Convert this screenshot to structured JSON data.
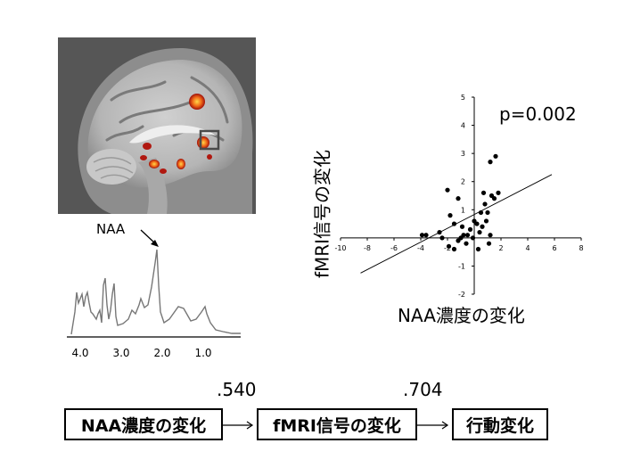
{
  "spectrum": {
    "peak_label": "NAA",
    "ticks": [
      "4.0",
      "3.0",
      "2.0",
      "1.0"
    ]
  },
  "chart_data": {
    "type": "scatter",
    "title": "",
    "xlabel": "NAA濃度の変化",
    "ylabel": "fMRI信号の変化",
    "annotation": "p=0.002",
    "xlim": [
      -10,
      8
    ],
    "ylim": [
      -2,
      5
    ],
    "xticks": [
      -10,
      -8,
      -6,
      -4,
      -2,
      0,
      2,
      4,
      6,
      8
    ],
    "yticks": [
      -2,
      -1,
      1,
      2,
      3,
      4,
      5
    ],
    "grid": false,
    "points": [
      [
        -3.9,
        0.1
      ],
      [
        -3.6,
        0.1
      ],
      [
        -2.4,
        0.0
      ],
      [
        -1.9,
        -0.3
      ],
      [
        -1.5,
        -0.4
      ],
      [
        -1.2,
        -0.1
      ],
      [
        -1.0,
        0.0
      ],
      [
        -0.8,
        0.1
      ],
      [
        -0.5,
        0.1
      ],
      [
        -0.3,
        0.3
      ],
      [
        -0.1,
        0.0
      ],
      [
        0.2,
        0.5
      ],
      [
        0.4,
        0.2
      ],
      [
        0.6,
        0.4
      ],
      [
        0.9,
        0.6
      ],
      [
        1.1,
        -0.2
      ],
      [
        1.2,
        0.1
      ],
      [
        0.5,
        0.9
      ],
      [
        0.8,
        1.2
      ],
      [
        1.3,
        1.5
      ],
      [
        1.5,
        1.4
      ],
      [
        1.8,
        1.6
      ],
      [
        1.2,
        2.7
      ],
      [
        1.6,
        2.9
      ],
      [
        -1.8,
        0.8
      ],
      [
        -1.2,
        1.4
      ],
      [
        -2.0,
        1.7
      ],
      [
        -1.5,
        0.5
      ],
      [
        0.3,
        -0.4
      ],
      [
        -0.6,
        -0.2
      ],
      [
        0.0,
        0.6
      ],
      [
        1.0,
        0.9
      ],
      [
        -2.6,
        0.2
      ],
      [
        0.7,
        1.6
      ],
      [
        -0.9,
        0.4
      ]
    ],
    "trendline": {
      "x": [
        -8.5,
        5.8
      ],
      "y": [
        -1.25,
        2.25
      ]
    }
  },
  "flow": {
    "box1": "NAA濃度の変化",
    "box2": "fMRI信号の変化",
    "box3": "行動変化",
    "coef1": ".540",
    "coef2": ".704"
  },
  "colors": {
    "brain_bg": "#5a5a5a",
    "activation": "#e8501a",
    "activation_hot": "#ffcc33",
    "spectrum_line": "#777777"
  }
}
